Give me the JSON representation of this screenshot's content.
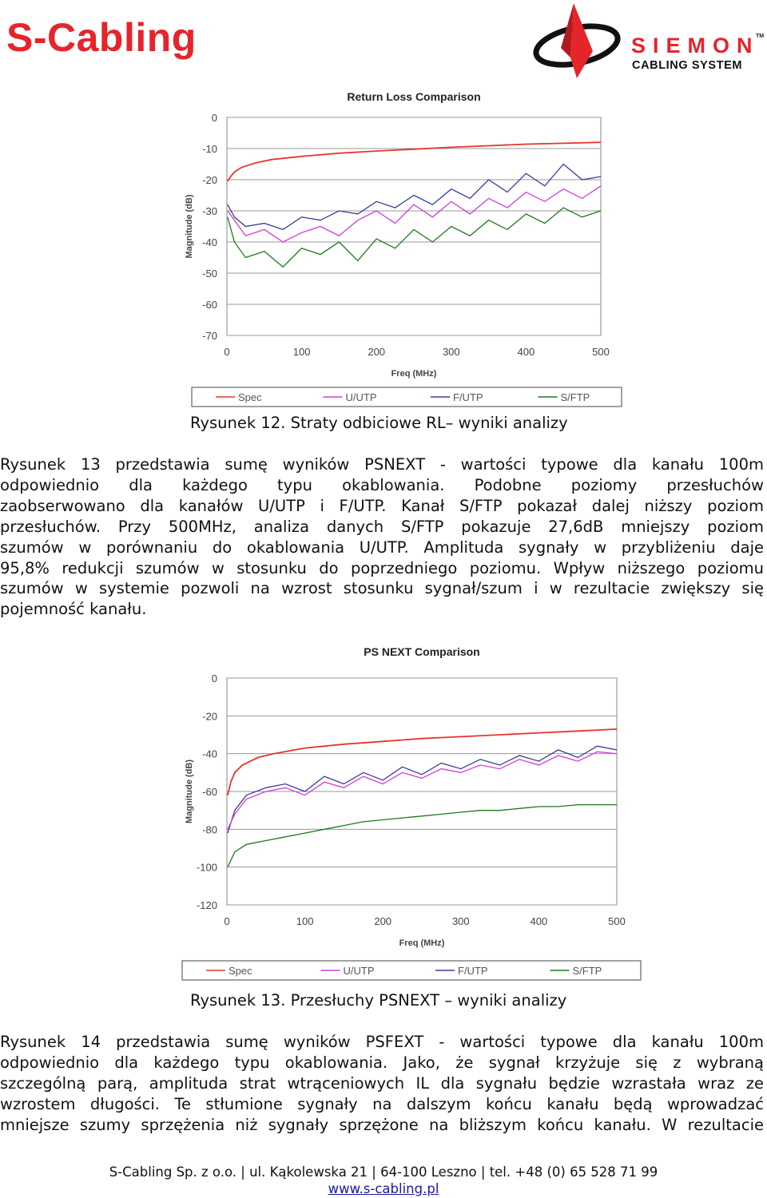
{
  "header": {
    "brand": "S-Cabling",
    "partner": {
      "name": "SIEMON",
      "tm": "TM",
      "subtitle": "CABLING SYSTEM"
    }
  },
  "figure12": {
    "chart_data": {
      "type": "line",
      "title": "Return Loss Comparison",
      "xlabel": "Freq (MHz)",
      "ylabel": "Magnitude (dB)",
      "xlim": [
        0,
        500
      ],
      "ylim": [
        -70,
        0
      ],
      "xticks": [
        "0",
        "100",
        "200",
        "300",
        "400",
        "500"
      ],
      "yticks": [
        "0",
        "-10",
        "-20",
        "-30",
        "-40",
        "-50",
        "-60",
        "-70"
      ],
      "grid": true,
      "legend_position": "bottom",
      "series": [
        {
          "name": "Spec",
          "color": "#e8342c",
          "x": [
            1,
            5,
            10,
            20,
            40,
            60,
            100,
            150,
            200,
            250,
            300,
            350,
            400,
            450,
            500
          ],
          "y": [
            -20.5,
            -19,
            -17.5,
            -16,
            -14.5,
            -13.5,
            -12.5,
            -11.5,
            -10.8,
            -10.2,
            -9.6,
            -9.1,
            -8.6,
            -8.3,
            -8.0
          ]
        },
        {
          "name": "U/UTP",
          "color": "#d43ad4",
          "x": [
            1,
            10,
            25,
            50,
            75,
            100,
            125,
            150,
            175,
            200,
            225,
            250,
            275,
            300,
            325,
            350,
            375,
            400,
            425,
            450,
            475,
            500
          ],
          "y": [
            -30,
            -33,
            -38,
            -36,
            -40,
            -37,
            -35,
            -38,
            -33,
            -30,
            -34,
            -28,
            -32,
            -27,
            -31,
            -26,
            -29,
            -24,
            -27,
            -23,
            -26,
            -22
          ]
        },
        {
          "name": "F/UTP",
          "color": "#3d3d9a",
          "x": [
            1,
            10,
            25,
            50,
            75,
            100,
            125,
            150,
            175,
            200,
            225,
            250,
            275,
            300,
            325,
            350,
            375,
            400,
            425,
            450,
            475,
            500
          ],
          "y": [
            -28,
            -32,
            -35,
            -34,
            -36,
            -32,
            -33,
            -30,
            -31,
            -27,
            -29,
            -25,
            -28,
            -23,
            -26,
            -20,
            -24,
            -18,
            -22,
            -15,
            -20,
            -19
          ]
        },
        {
          "name": "S/FTP",
          "color": "#1c7a1c",
          "x": [
            1,
            10,
            25,
            50,
            75,
            100,
            125,
            150,
            175,
            200,
            225,
            250,
            275,
            300,
            325,
            350,
            375,
            400,
            425,
            450,
            475,
            500
          ],
          "y": [
            -32,
            -40,
            -45,
            -43,
            -48,
            -42,
            -44,
            -40,
            -46,
            -39,
            -42,
            -36,
            -40,
            -35,
            -38,
            -33,
            -36,
            -31,
            -34,
            -29,
            -32,
            -30
          ]
        }
      ]
    },
    "caption": "Rysunek 12. Straty odbiciowe RL– wyniki analizy"
  },
  "paragraph1": {
    "lines": [
      "Rysunek 13 przedstawia sumę wyników PSNEXT - wartości typowe dla kanału 100m",
      "odpowiednio dla każdego typu okablowania. Podobne poziomy przesłuchów",
      "zaobserwowano dla kanałów U/UTP i F/UTP. Kanał S/FTP pokazał dalej niższy poziom",
      "przesłuchów. Przy 500MHz, analiza danych S/FTP pokazuje 27,6dB mniejszy poziom",
      "szumów w porównaniu do okablowania U/UTP. Amplituda sygnały w przybliżeniu daje",
      "95,8% redukcji szumów w stosunku do poprzedniego poziomu. Wpływ niższego poziomu",
      "szumów w systemie pozwoli na wzrost stosunku sygnał/szum i w rezultacie zwiększy się",
      "pojemność kanału."
    ]
  },
  "figure13": {
    "chart_data": {
      "type": "line",
      "title": "PS NEXT Comparison",
      "xlabel": "Freq (MHz)",
      "ylabel": "Magnitude (dB)",
      "xlim": [
        0,
        500
      ],
      "ylim": [
        -120,
        0
      ],
      "xticks": [
        "0",
        "100",
        "200",
        "300",
        "400",
        "500"
      ],
      "yticks": [
        "0",
        "-20",
        "-40",
        "-60",
        "-80",
        "-100",
        "-120"
      ],
      "grid": true,
      "legend_position": "bottom",
      "series": [
        {
          "name": "Spec",
          "color": "#e8342c",
          "x": [
            1,
            5,
            10,
            20,
            40,
            60,
            100,
            150,
            200,
            250,
            300,
            350,
            400,
            450,
            500
          ],
          "y": [
            -62,
            -55,
            -50,
            -46,
            -42,
            -40,
            -37,
            -35,
            -33.5,
            -32,
            -31,
            -30,
            -29,
            -28,
            -27
          ]
        },
        {
          "name": "U/UTP",
          "color": "#d43ad4",
          "x": [
            1,
            10,
            25,
            50,
            75,
            100,
            125,
            150,
            175,
            200,
            225,
            250,
            275,
            300,
            325,
            350,
            375,
            400,
            425,
            450,
            475,
            500
          ],
          "y": [
            -80,
            -72,
            -64,
            -60,
            -58,
            -62,
            -55,
            -58,
            -52,
            -56,
            -50,
            -53,
            -48,
            -50,
            -46,
            -48,
            -43,
            -46,
            -41,
            -44,
            -39,
            -40
          ]
        },
        {
          "name": "F/UTP",
          "color": "#3d3d9a",
          "x": [
            1,
            10,
            25,
            50,
            75,
            100,
            125,
            150,
            175,
            200,
            225,
            250,
            275,
            300,
            325,
            350,
            375,
            400,
            425,
            450,
            475,
            500
          ],
          "y": [
            -82,
            -70,
            -62,
            -58,
            -56,
            -60,
            -52,
            -56,
            -50,
            -54,
            -47,
            -51,
            -45,
            -48,
            -43,
            -46,
            -41,
            -44,
            -38,
            -42,
            -36,
            -38
          ]
        },
        {
          "name": "S/FTP",
          "color": "#1c7a1c",
          "x": [
            1,
            10,
            25,
            50,
            75,
            100,
            125,
            150,
            175,
            200,
            225,
            250,
            275,
            300,
            325,
            350,
            375,
            400,
            425,
            450,
            475,
            500
          ],
          "y": [
            -100,
            -92,
            -88,
            -86,
            -84,
            -82,
            -80,
            -78,
            -76,
            -75,
            -74,
            -73,
            -72,
            -71,
            -70,
            -70,
            -69,
            -68,
            -68,
            -67,
            -67,
            -67
          ]
        }
      ]
    },
    "caption": "Rysunek 13. Przesłuchy PSNEXT – wyniki analizy"
  },
  "paragraph2": {
    "lines": [
      "Rysunek 14 przedstawia sumę wyników PSFEXT - wartości typowe dla kanału 100m",
      "odpowiednio dla każdego typu okablowania. Jako, że sygnał krzyżuje się z wybraną",
      "szczególną parą, amplituda strat wtrąceniowych IL dla sygnału będzie wzrastała wraz ze",
      "wzrostem długości. Te stłumione sygnały na dalszym końcu kanału będą wprowadzać",
      "mniejsze szumy sprzężenia niż sygnały sprzężone na bliższym końcu kanału. W rezultacie"
    ]
  },
  "footer": {
    "address": "S-Cabling Sp. z o.o. | ul. Kąkolewska 21 | 64-100 Leszno | tel. +48 (0) 65 528 71 99",
    "website": "www.s-cabling.pl"
  }
}
